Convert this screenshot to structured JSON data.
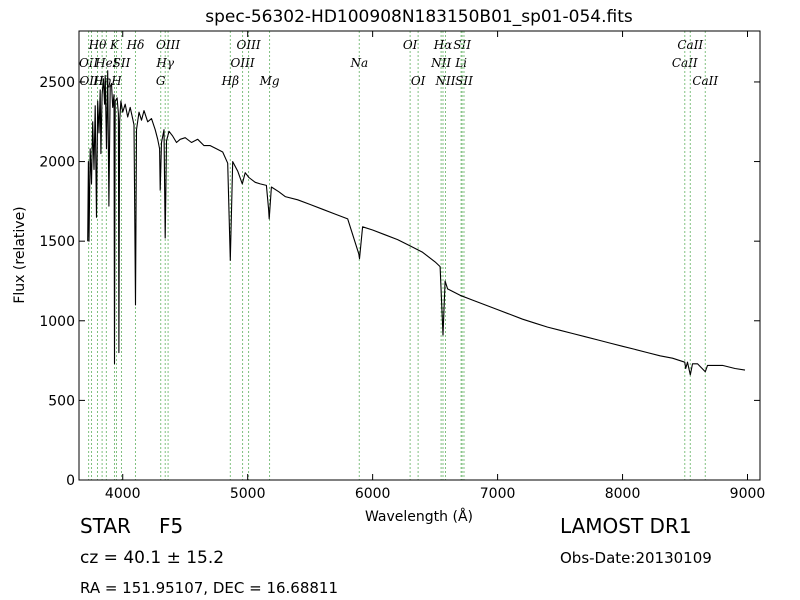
{
  "chart_data": {
    "type": "line",
    "title": "spec-56302-HD100908N183150B01_sp01-054.fits",
    "xlabel": "Wavelength (Å)",
    "ylabel": "Flux (relative)",
    "xlim": [
      3650,
      9100
    ],
    "ylim": [
      0,
      2820
    ],
    "xticks": [
      4000,
      5000,
      6000,
      7000,
      8000,
      9000
    ],
    "yticks": [
      0,
      500,
      1000,
      1500,
      2000,
      2500
    ],
    "grid": false,
    "series": [
      {
        "color": "#000000",
        "points": [
          [
            3720,
            1500
          ],
          [
            3725,
            2000
          ],
          [
            3730,
            1500
          ],
          [
            3740,
            2080
          ],
          [
            3750,
            1860
          ],
          [
            3760,
            2250
          ],
          [
            3770,
            1950
          ],
          [
            3780,
            2350
          ],
          [
            3790,
            1650
          ],
          [
            3800,
            2380
          ],
          [
            3810,
            2180
          ],
          [
            3820,
            2450
          ],
          [
            3825,
            2050
          ],
          [
            3835,
            2420
          ],
          [
            3845,
            2520
          ],
          [
            3855,
            2360
          ],
          [
            3860,
            2540
          ],
          [
            3870,
            2080
          ],
          [
            3880,
            2570
          ],
          [
            3889,
            1720
          ],
          [
            3900,
            2470
          ],
          [
            3910,
            2490
          ],
          [
            3920,
            2340
          ],
          [
            3930,
            2420
          ],
          [
            3934,
            730
          ],
          [
            3940,
            2380
          ],
          [
            3955,
            2400
          ],
          [
            3965,
            2300
          ],
          [
            3969,
            800
          ],
          [
            3975,
            2250
          ],
          [
            3985,
            2380
          ],
          [
            4000,
            2310
          ],
          [
            4020,
            2360
          ],
          [
            4040,
            2280
          ],
          [
            4060,
            2340
          ],
          [
            4090,
            2230
          ],
          [
            4102,
            1100
          ],
          [
            4110,
            2200
          ],
          [
            4130,
            2310
          ],
          [
            4150,
            2260
          ],
          [
            4170,
            2320
          ],
          [
            4200,
            2250
          ],
          [
            4230,
            2270
          ],
          [
            4260,
            2200
          ],
          [
            4280,
            2140
          ],
          [
            4295,
            2080
          ],
          [
            4300,
            1820
          ],
          [
            4310,
            2120
          ],
          [
            4330,
            2200
          ],
          [
            4340,
            1520
          ],
          [
            4350,
            2130
          ],
          [
            4370,
            2190
          ],
          [
            4400,
            2160
          ],
          [
            4430,
            2120
          ],
          [
            4460,
            2140
          ],
          [
            4500,
            2150
          ],
          [
            4550,
            2120
          ],
          [
            4600,
            2140
          ],
          [
            4650,
            2100
          ],
          [
            4700,
            2100
          ],
          [
            4750,
            2080
          ],
          [
            4800,
            2060
          ],
          [
            4840,
            1990
          ],
          [
            4861,
            1380
          ],
          [
            4880,
            2000
          ],
          [
            4920,
            1940
          ],
          [
            4957,
            1860
          ],
          [
            4980,
            1930
          ],
          [
            5010,
            1900
          ],
          [
            5060,
            1870
          ],
          [
            5100,
            1860
          ],
          [
            5150,
            1850
          ],
          [
            5167,
            1700
          ],
          [
            5172,
            1640
          ],
          [
            5190,
            1840
          ],
          [
            5250,
            1810
          ],
          [
            5300,
            1780
          ],
          [
            5400,
            1760
          ],
          [
            5500,
            1730
          ],
          [
            5600,
            1700
          ],
          [
            5700,
            1670
          ],
          [
            5800,
            1640
          ],
          [
            5889,
            1420
          ],
          [
            5895,
            1390
          ],
          [
            5920,
            1590
          ],
          [
            6000,
            1570
          ],
          [
            6100,
            1540
          ],
          [
            6200,
            1510
          ],
          [
            6300,
            1470
          ],
          [
            6400,
            1430
          ],
          [
            6500,
            1370
          ],
          [
            6540,
            1340
          ],
          [
            6563,
            910
          ],
          [
            6580,
            1250
          ],
          [
            6600,
            1200
          ],
          [
            6700,
            1160
          ],
          [
            6800,
            1130
          ],
          [
            6900,
            1100
          ],
          [
            7000,
            1070
          ],
          [
            7100,
            1040
          ],
          [
            7200,
            1010
          ],
          [
            7300,
            985
          ],
          [
            7400,
            960
          ],
          [
            7500,
            940
          ],
          [
            7600,
            920
          ],
          [
            7700,
            900
          ],
          [
            7800,
            880
          ],
          [
            7900,
            860
          ],
          [
            8000,
            840
          ],
          [
            8100,
            820
          ],
          [
            8200,
            800
          ],
          [
            8300,
            780
          ],
          [
            8400,
            765
          ],
          [
            8498,
            740
          ],
          [
            8505,
            700
          ],
          [
            8520,
            740
          ],
          [
            8542,
            660
          ],
          [
            8560,
            730
          ],
          [
            8600,
            730
          ],
          [
            8662,
            680
          ],
          [
            8680,
            720
          ],
          [
            8800,
            720
          ],
          [
            8900,
            700
          ],
          [
            8980,
            690
          ]
        ]
      }
    ],
    "line_markers": [
      {
        "x": 3727,
        "labels": [
          "OII"
        ],
        "color": "#80c080",
        "row": 2
      },
      {
        "x": 3750,
        "labels": [
          "OIII"
        ],
        "color": "#80c080",
        "row": 3
      },
      {
        "x": 3798,
        "labels": [
          "Hθ"
        ],
        "color": "#80c080",
        "row": 1
      },
      {
        "x": 3835,
        "labels": [
          "Hη"
        ],
        "color": "#80c080",
        "row": 3
      },
      {
        "x": 3869,
        "labels": [
          "HeI"
        ],
        "color": "#80c080",
        "row": 2
      },
      {
        "x": 3934,
        "labels": [
          "K"
        ],
        "color": "#80c080",
        "row": 1
      },
      {
        "x": 3950,
        "labels": [
          "H"
        ],
        "color": "#80c080",
        "row": 3
      },
      {
        "x": 3990,
        "labels": [
          "SII"
        ],
        "color": "#80c080",
        "row": 2
      },
      {
        "x": 4102,
        "labels": [
          "Hδ"
        ],
        "color": "#80c080",
        "row": 1
      },
      {
        "x": 4304,
        "labels": [
          "G"
        ],
        "color": "#80c080",
        "row": 3
      },
      {
        "x": 4340,
        "labels": [
          "Hγ"
        ],
        "color": "#80c080",
        "row": 2
      },
      {
        "x": 4363,
        "labels": [
          "OIII"
        ],
        "color": "#80c080",
        "row": 1
      },
      {
        "x": 4861,
        "labels": [
          "Hβ"
        ],
        "color": "#80c080",
        "row": 3
      },
      {
        "x": 4959,
        "labels": [
          "OIII"
        ],
        "color": "#80c080",
        "row": 2
      },
      {
        "x": 5007,
        "labels": [
          "OIII"
        ],
        "color": "#80c080",
        "row": 1
      },
      {
        "x": 5175,
        "labels": [
          "Mg"
        ],
        "color": "#80c080",
        "row": 3
      },
      {
        "x": 5893,
        "labels": [
          "Na"
        ],
        "color": "#80c080",
        "row": 2
      },
      {
        "x": 6300,
        "labels": [
          "OI"
        ],
        "color": "#80c080",
        "row": 1
      },
      {
        "x": 6364,
        "labels": [
          "OI"
        ],
        "color": "#80c080",
        "row": 3
      },
      {
        "x": 6548,
        "labels": [
          "NII"
        ],
        "color": "#80c080",
        "row": 2
      },
      {
        "x": 6563,
        "labels": [
          "Hα"
        ],
        "color": "#80c080",
        "row": 1
      },
      {
        "x": 6583,
        "labels": [
          "NII"
        ],
        "color": "#80c080",
        "row": 3
      },
      {
        "x": 6708,
        "labels": [
          "Li"
        ],
        "color": "#80c080",
        "row": 2
      },
      {
        "x": 6716,
        "labels": [
          "SII"
        ],
        "color": "#80c080",
        "row": 1
      },
      {
        "x": 6731,
        "labels": [
          "SII"
        ],
        "color": "#80c080",
        "row": 3
      },
      {
        "x": 8498,
        "labels": [
          "CaII"
        ],
        "color": "#80c080",
        "row": 2
      },
      {
        "x": 8542,
        "labels": [
          "CaII"
        ],
        "color": "#80c080",
        "row": 1
      },
      {
        "x": 8662,
        "labels": [
          "CaII"
        ],
        "color": "#80c080",
        "row": 3
      }
    ]
  },
  "info": {
    "object_class": "STAR",
    "subclass": "F5",
    "survey": "LAMOST DR1",
    "cz": "cz = 40.1  ± 15.2",
    "obs_date": "Obs-Date:20130109",
    "coords": "RA = 151.95107, DEC = 16.68811"
  }
}
